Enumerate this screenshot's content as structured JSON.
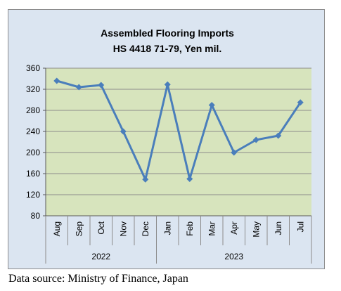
{
  "chart_data": {
    "type": "line",
    "title_line1": "Assembled Flooring Imports",
    "title_line2": "HS 4418 71-79, Yen mil.",
    "categories": [
      "Aug",
      "Sep",
      "Oct",
      "Nov",
      "Dec",
      "Jan",
      "Feb",
      "Mar",
      "Apr",
      "May",
      "Jun",
      "Jul"
    ],
    "year_groups": [
      {
        "label": "2022",
        "count": 5
      },
      {
        "label": "2023",
        "count": 7
      }
    ],
    "series": [
      {
        "values": [
          336,
          324,
          328,
          240,
          149,
          329,
          150,
          290,
          200,
          224,
          232,
          295
        ]
      }
    ],
    "ylim": [
      80,
      360
    ],
    "yticks": [
      80,
      120,
      160,
      200,
      240,
      280,
      320,
      360
    ],
    "grid": true,
    "colors": {
      "line": "#4a7ebb",
      "plot_bg": "#d7e4bd",
      "frame_bg": "#dbe5f1",
      "grid": "#8c8c8c"
    }
  },
  "source_note": "Data source: Ministry of Finance, Japan"
}
